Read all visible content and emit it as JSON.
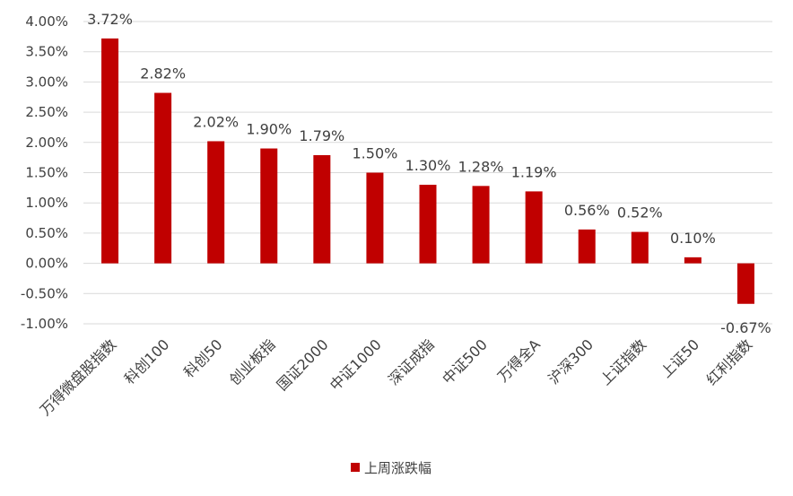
{
  "chart_data": {
    "type": "bar",
    "categories": [
      "万得微盘股指数",
      "科创100",
      "科创50",
      "创业板指",
      "国证2000",
      "中证1000",
      "深证成指",
      "中证500",
      "万得全A",
      "沪深300",
      "上证指数",
      "上证50",
      "红利指数"
    ],
    "series": [
      {
        "name": "上周涨跌幅",
        "values": [
          3.72,
          2.82,
          2.02,
          1.9,
          1.79,
          1.5,
          1.3,
          1.28,
          1.19,
          0.56,
          0.52,
          0.1,
          -0.67
        ],
        "labels": [
          "3.72%",
          "2.82%",
          "2.02%",
          "1.90%",
          "1.79%",
          "1.50%",
          "1.30%",
          "1.28%",
          "1.19%",
          "0.56%",
          "0.52%",
          "0.10%",
          "-0.67%"
        ]
      }
    ],
    "y_ticks": [
      4.0,
      3.5,
      3.0,
      2.5,
      2.0,
      1.5,
      1.0,
      0.5,
      0.0,
      -0.5,
      -1.0
    ],
    "y_tick_labels": [
      "4.00%",
      "3.50%",
      "3.00%",
      "2.50%",
      "2.00%",
      "1.50%",
      "1.00%",
      "0.50%",
      "0.00%",
      "-0.50%",
      "-1.00%"
    ],
    "ylim": [
      -1.0,
      4.0
    ],
    "grid": true,
    "legend": "bottom",
    "colors": {
      "bar": "#C00000",
      "grid": "#D9D9D9",
      "text": "#404040"
    }
  }
}
